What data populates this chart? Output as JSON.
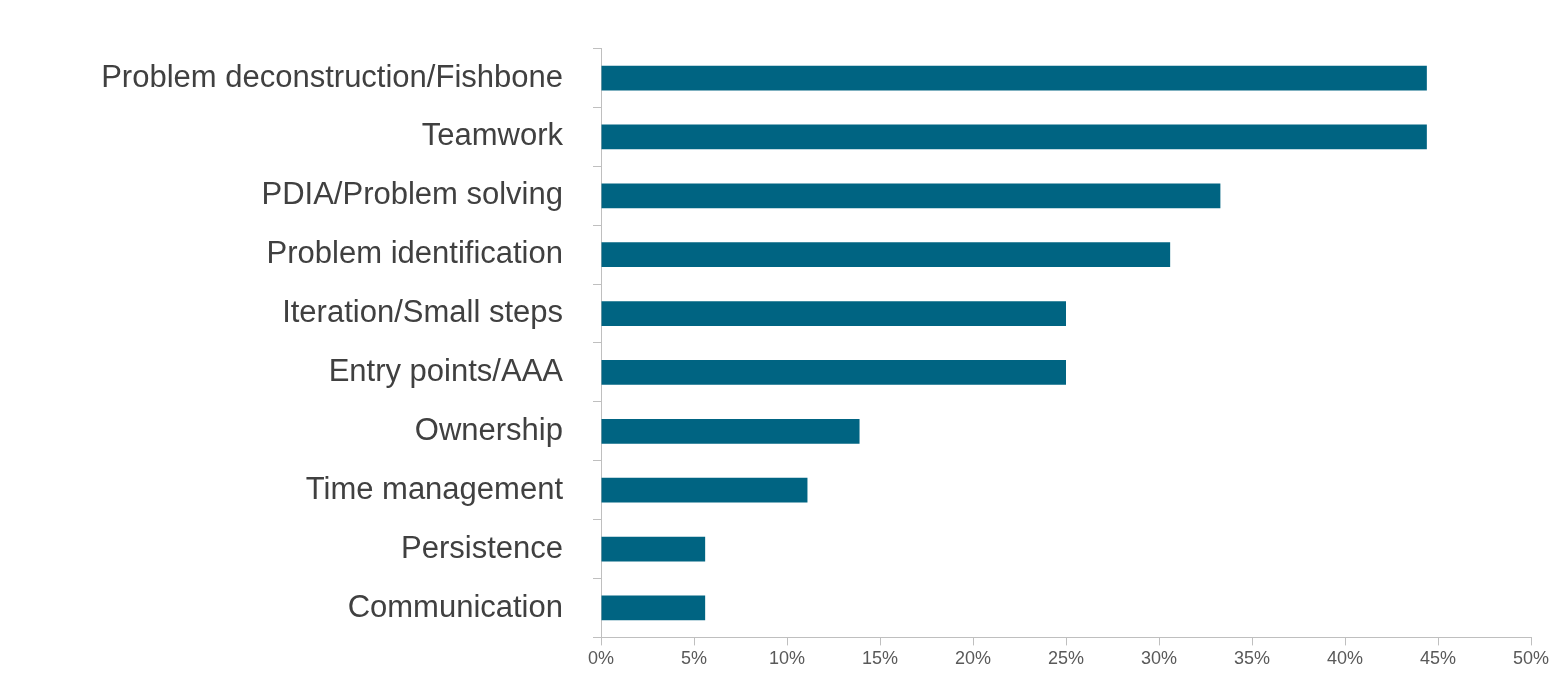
{
  "chart_data": {
    "type": "bar",
    "orientation": "horizontal",
    "categories": [
      "Problem deconstruction/Fishbone",
      "Teamwork",
      "PDIA/Problem solving",
      "Problem identification",
      "Iteration/Small steps",
      "Entry points/AAA",
      "Ownership",
      "Time management",
      "Persistence",
      "Communication"
    ],
    "values": [
      44.4,
      44.4,
      33.3,
      30.6,
      25,
      25,
      13.9,
      11.1,
      5.6,
      5.6
    ],
    "color": "#006482",
    "xlim": [
      0,
      50
    ],
    "xticks": [
      {
        "value": 0,
        "label": "0%"
      },
      {
        "value": 5,
        "label": "5%"
      },
      {
        "value": 10,
        "label": "10%"
      },
      {
        "value": 15,
        "label": "15%"
      },
      {
        "value": 20,
        "label": "20%"
      },
      {
        "value": 25,
        "label": "25%"
      },
      {
        "value": 30,
        "label": "30%"
      },
      {
        "value": 35,
        "label": "35%"
      },
      {
        "value": 40,
        "label": "40%"
      },
      {
        "value": 45,
        "label": "45%"
      },
      {
        "value": 50,
        "label": "50%"
      }
    ],
    "grid": false,
    "legend": false
  }
}
